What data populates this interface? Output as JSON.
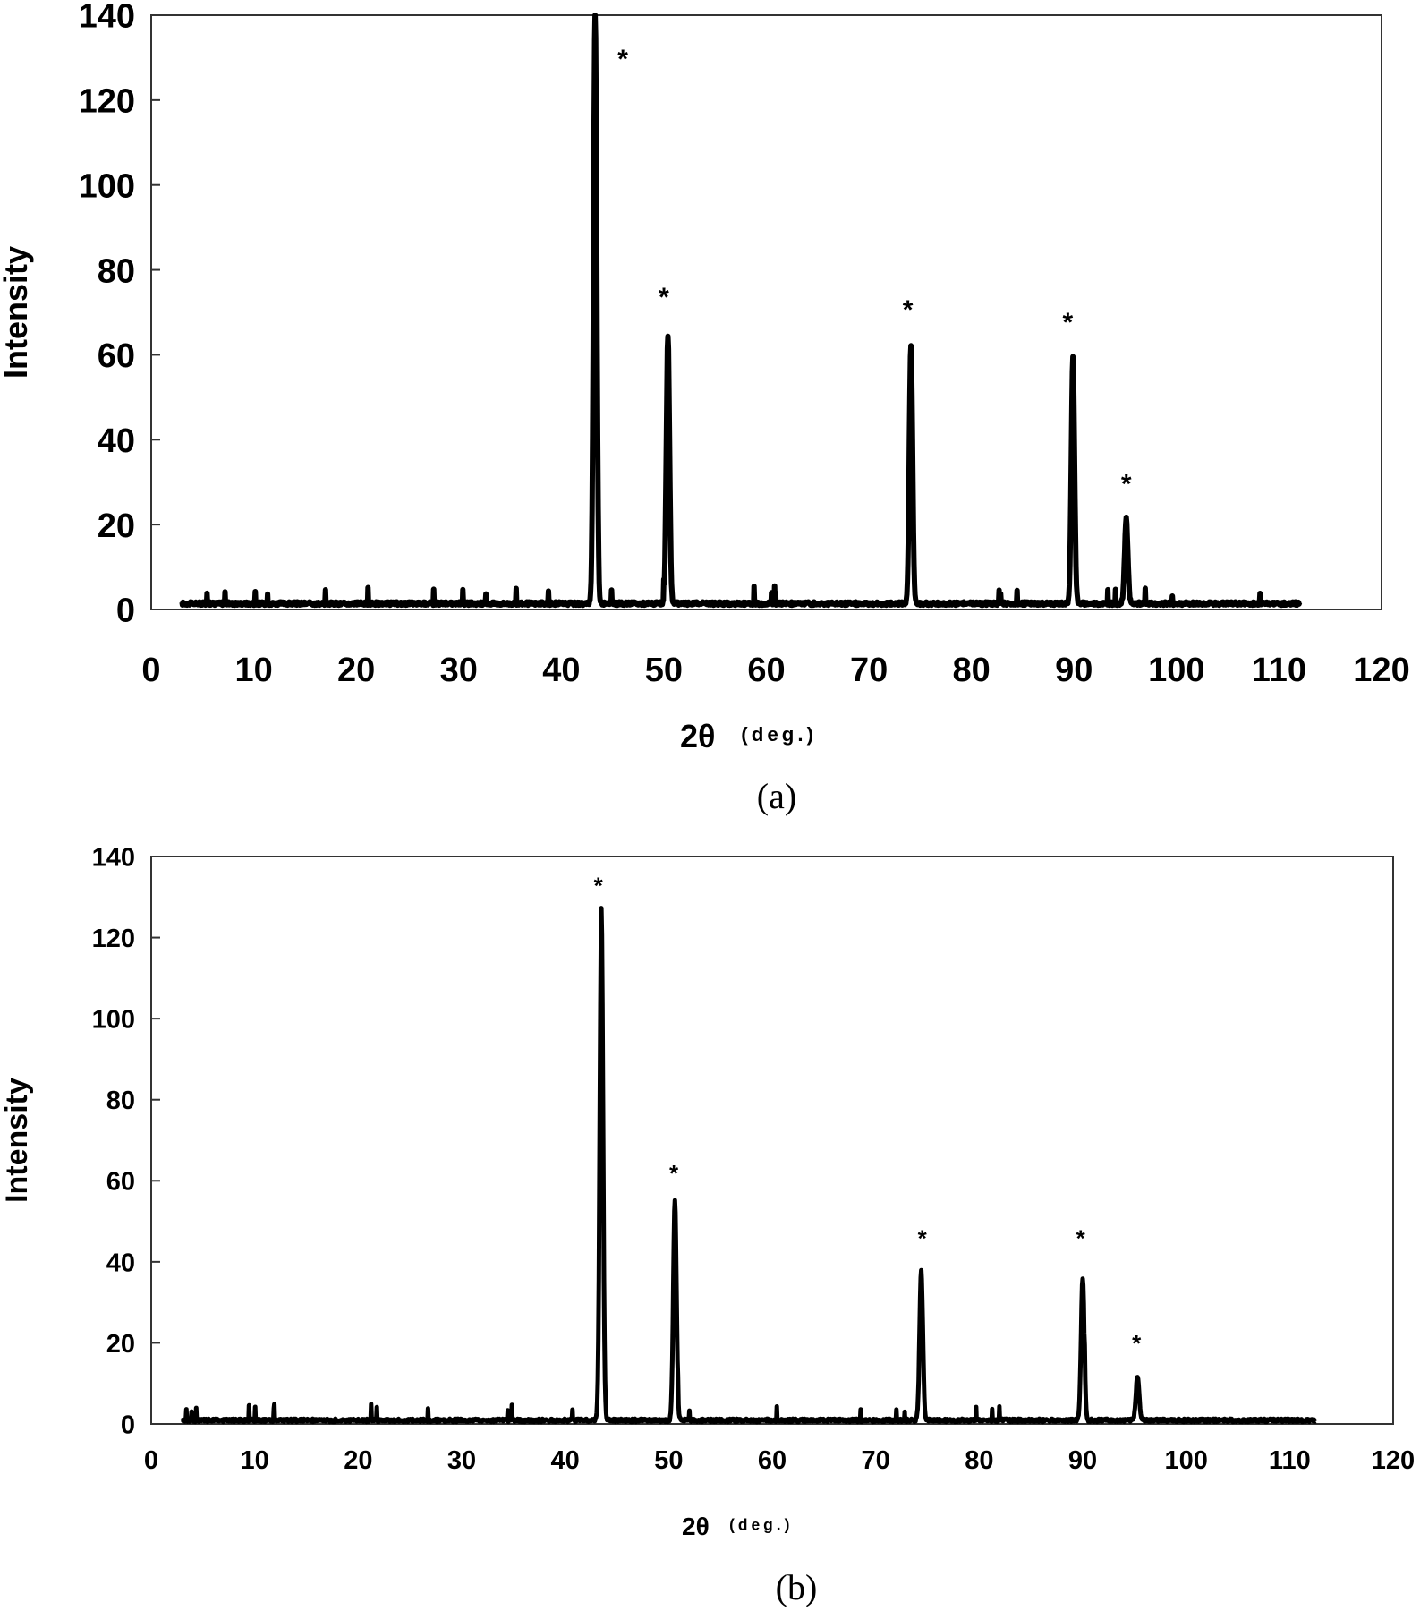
{
  "chart_data": [
    {
      "type": "line",
      "panel": "(a)",
      "title": "",
      "xlabel": "2θ (deg.)",
      "xlabel_main": "2θ",
      "xlabel_unit": "(deg.)",
      "ylabel": "Intensity",
      "xlim": [
        0,
        120
      ],
      "ylim": [
        0,
        140
      ],
      "xticks": [
        0,
        10,
        20,
        30,
        40,
        50,
        60,
        70,
        80,
        90,
        100,
        110,
        120
      ],
      "yticks": [
        0,
        20,
        40,
        60,
        80,
        100,
        120,
        140
      ],
      "grid": false,
      "legend": null,
      "data_range_x": [
        3,
        112
      ],
      "baseline": 1,
      "peaks": [
        {
          "x": 43.3,
          "y": 140,
          "marker": "*",
          "note": "clipped at top of axis"
        },
        {
          "x": 50.4,
          "y": 63,
          "marker": "*"
        },
        {
          "x": 74.1,
          "y": 61,
          "marker": "*"
        },
        {
          "x": 89.9,
          "y": 58,
          "marker": "*"
        },
        {
          "x": 95.1,
          "y": 20,
          "marker": "*"
        }
      ],
      "annotations": [
        {
          "text": "*",
          "x": 46.0,
          "y": 131
        },
        {
          "text": "*",
          "x": 50.0,
          "y": 75
        },
        {
          "text": "*",
          "x": 73.8,
          "y": 72
        },
        {
          "text": "*",
          "x": 89.4,
          "y": 69
        },
        {
          "text": "*",
          "x": 95.1,
          "y": 31
        }
      ]
    },
    {
      "type": "line",
      "panel": "(b)",
      "title": "",
      "xlabel": "2θ (deg.)",
      "xlabel_main": "2θ",
      "xlabel_unit": "(deg.)",
      "ylabel": "Intensity",
      "xlim": [
        0,
        120
      ],
      "ylim": [
        0,
        140
      ],
      "xticks": [
        0,
        10,
        20,
        30,
        40,
        50,
        60,
        70,
        80,
        90,
        100,
        110,
        120
      ],
      "yticks": [
        0,
        20,
        40,
        60,
        80,
        100,
        120,
        140
      ],
      "grid": false,
      "legend": null,
      "data_range_x": [
        3,
        112.5
      ],
      "baseline": 0.5,
      "peaks": [
        {
          "x": 43.5,
          "y": 126,
          "marker": "*"
        },
        {
          "x": 50.6,
          "y": 54,
          "marker": "*"
        },
        {
          "x": 74.4,
          "y": 37,
          "marker": "*"
        },
        {
          "x": 90.0,
          "y": 35,
          "marker": "*"
        },
        {
          "x": 95.3,
          "y": 11,
          "marker": "*"
        }
      ],
      "annotations": [
        {
          "text": "*",
          "x": 43.2,
          "y": 134
        },
        {
          "text": "*",
          "x": 50.5,
          "y": 63
        },
        {
          "text": "*",
          "x": 74.5,
          "y": 47
        },
        {
          "text": "*",
          "x": 89.8,
          "y": 47
        },
        {
          "text": "*",
          "x": 95.2,
          "y": 21
        }
      ]
    }
  ],
  "figure": {
    "caption_a": "(a)",
    "caption_b": "(b)",
    "ylabel": "Intensity",
    "xlabel_main": "2θ",
    "xlabel_unit": "(deg.)",
    "peak_marker": "*",
    "line_color": "#000000",
    "background": "#ffffff"
  }
}
